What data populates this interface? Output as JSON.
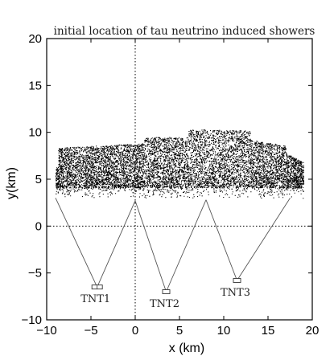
{
  "chart_data": {
    "type": "scatter",
    "title": "initial location of tau neutrino induced showers",
    "xlabel": "x (km)",
    "ylabel": "y(km)",
    "xlim": [
      -10,
      20
    ],
    "ylim": [
      -10,
      20
    ],
    "x_ticks": [
      -10,
      -5,
      0,
      5,
      10,
      15,
      20
    ],
    "y_ticks": [
      -10,
      -5,
      0,
      5,
      10,
      15,
      20
    ],
    "x_tick_labels": [
      "−10",
      "−5",
      "0",
      "5",
      "10",
      "15",
      "20"
    ],
    "y_tick_labels": [
      "−10",
      "−5",
      "0",
      "5",
      "10",
      "15",
      "20"
    ],
    "reference_lines": [
      {
        "orientation": "vertical",
        "value": 0,
        "style": "dotted"
      },
      {
        "orientation": "horizontal",
        "value": 0,
        "style": "dotted"
      }
    ],
    "shower_region": {
      "x_range": [
        -9,
        20
      ],
      "y_range": [
        3,
        10.5
      ],
      "approx_points": 9000
    },
    "detectors": [
      {
        "name": "TNT1",
        "x": -4.3,
        "y": -6.5,
        "field_of_view": [
          [
            -9,
            3
          ],
          [
            0,
            2.7
          ]
        ]
      },
      {
        "name": "TNT2",
        "x": 3.5,
        "y": -7.0,
        "field_of_view": [
          [
            0,
            2.7
          ],
          [
            8,
            2.8
          ]
        ]
      },
      {
        "name": "TNT3",
        "x": 11.5,
        "y": -5.8,
        "field_of_view": [
          [
            8,
            2.8
          ],
          [
            17.5,
            3
          ]
        ]
      }
    ],
    "grid": false,
    "legend": "none"
  }
}
